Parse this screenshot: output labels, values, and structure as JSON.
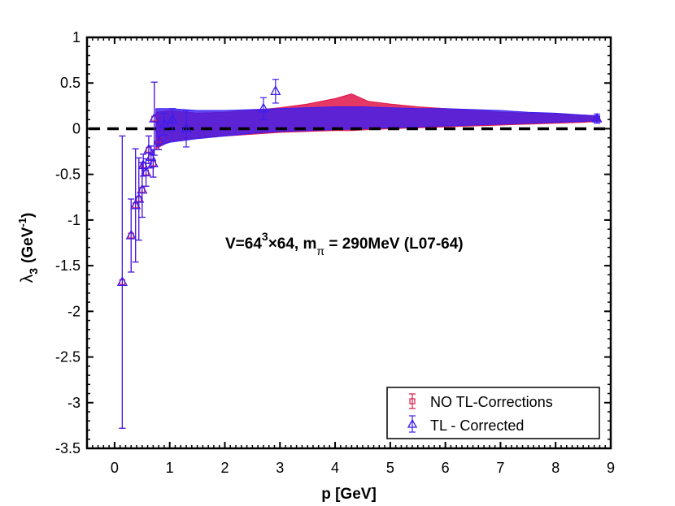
{
  "chart_data": {
    "type": "scatter",
    "title": "",
    "xlabel": "p [GeV]",
    "ylabel_main": "λ",
    "ylabel_sub": "3",
    "ylabel_unit": "(GeV",
    "ylabel_unit_sup": "-1",
    "ylabel_unit_end": ")",
    "xlim": [
      -0.5,
      9
    ],
    "ylim": [
      -3.5,
      1
    ],
    "xticks": [
      0,
      1,
      2,
      3,
      4,
      5,
      6,
      7,
      8,
      9
    ],
    "xtick_labels": [
      "0",
      "1",
      "2",
      "3",
      "4",
      "5",
      "6",
      "7",
      "8",
      "9"
    ],
    "yticks": [
      1,
      0.5,
      0,
      -0.5,
      -1,
      -1.5,
      -2,
      -2.5,
      -3,
      -3.5
    ],
    "ytick_labels": [
      "1",
      "0.5",
      "0",
      "-0.5",
      "-1",
      "-1.5",
      "-2",
      "-2.5",
      "-3",
      "-3.5"
    ],
    "reference_line_y": 0,
    "annotation": {
      "prefix": "V=64",
      "sup1": "3",
      "mid": "×64, m",
      "sub": "π",
      "suffix": " = 290MeV (L07-64)"
    },
    "legend": {
      "position": "bottom-right",
      "entries": [
        "NO TL-Corrections",
        "TL - Corrected"
      ]
    },
    "colors": {
      "no_tl": "#e0154a",
      "tl": "#3b1df0",
      "refline": "#000000"
    },
    "series": [
      {
        "name": "NO TL-Corrections",
        "marker": "square",
        "points": [
          {
            "x": 0.14,
            "y": -1.68,
            "err": 1.6
          },
          {
            "x": 0.3,
            "y": -1.17,
            "err": 0.4
          },
          {
            "x": 0.38,
            "y": -0.84,
            "err": 0.62
          },
          {
            "x": 0.44,
            "y": -0.77,
            "err": 0.45
          },
          {
            "x": 0.5,
            "y": -0.67,
            "err": 0.3
          },
          {
            "x": 0.52,
            "y": -0.4,
            "err": 0.12
          },
          {
            "x": 0.57,
            "y": -0.48,
            "err": 0.15
          },
          {
            "x": 0.62,
            "y": -0.23,
            "err": 0.15
          },
          {
            "x": 0.66,
            "y": -0.31,
            "err": 0.12
          },
          {
            "x": 0.7,
            "y": -0.38,
            "err": 0.15
          },
          {
            "x": 0.72,
            "y": 0.11,
            "err": 0.4
          },
          {
            "x": 0.8,
            "y": -0.13,
            "err": 0.1
          }
        ],
        "band": [
          {
            "x": 0.75,
            "lo": -0.22,
            "hi": 0.18
          },
          {
            "x": 1.0,
            "lo": -0.14,
            "hi": 0.2
          },
          {
            "x": 1.5,
            "lo": -0.1,
            "hi": 0.17
          },
          {
            "x": 2.0,
            "lo": -0.08,
            "hi": 0.18
          },
          {
            "x": 2.5,
            "lo": -0.06,
            "hi": 0.2
          },
          {
            "x": 3.0,
            "lo": -0.04,
            "hi": 0.23
          },
          {
            "x": 3.5,
            "lo": -0.03,
            "hi": 0.27
          },
          {
            "x": 4.0,
            "lo": -0.02,
            "hi": 0.33
          },
          {
            "x": 4.3,
            "lo": -0.02,
            "hi": 0.38
          },
          {
            "x": 4.6,
            "lo": -0.01,
            "hi": 0.3
          },
          {
            "x": 5.0,
            "lo": 0.0,
            "hi": 0.27
          },
          {
            "x": 5.5,
            "lo": 0.01,
            "hi": 0.24
          },
          {
            "x": 6.0,
            "lo": 0.02,
            "hi": 0.22
          },
          {
            "x": 6.5,
            "lo": 0.03,
            "hi": 0.2
          },
          {
            "x": 7.0,
            "lo": 0.04,
            "hi": 0.18
          },
          {
            "x": 7.5,
            "lo": 0.05,
            "hi": 0.17
          },
          {
            "x": 8.0,
            "lo": 0.06,
            "hi": 0.16
          },
          {
            "x": 8.5,
            "lo": 0.07,
            "hi": 0.15
          },
          {
            "x": 8.8,
            "lo": 0.08,
            "hi": 0.14
          }
        ]
      },
      {
        "name": "TL - Corrected",
        "marker": "triangle",
        "points": [
          {
            "x": 0.14,
            "y": -1.68,
            "err": 1.6
          },
          {
            "x": 0.3,
            "y": -1.17,
            "err": 0.4
          },
          {
            "x": 0.38,
            "y": -0.84,
            "err": 0.62
          },
          {
            "x": 0.44,
            "y": -0.77,
            "err": 0.45
          },
          {
            "x": 0.5,
            "y": -0.67,
            "err": 0.3
          },
          {
            "x": 0.52,
            "y": -0.4,
            "err": 0.12
          },
          {
            "x": 0.57,
            "y": -0.48,
            "err": 0.15
          },
          {
            "x": 0.62,
            "y": -0.23,
            "err": 0.15
          },
          {
            "x": 0.66,
            "y": -0.31,
            "err": 0.12
          },
          {
            "x": 0.7,
            "y": -0.38,
            "err": 0.15
          },
          {
            "x": 0.72,
            "y": 0.11,
            "err": 0.4
          },
          {
            "x": 0.8,
            "y": -0.13,
            "err": 0.1
          },
          {
            "x": 0.9,
            "y": 0.05,
            "err": 0.12
          },
          {
            "x": 1.05,
            "y": 0.1,
            "err": 0.12
          },
          {
            "x": 1.3,
            "y": 0.0,
            "err": 0.2
          },
          {
            "x": 2.7,
            "y": 0.22,
            "err": 0.12
          },
          {
            "x": 2.92,
            "y": 0.41,
            "err": 0.13
          },
          {
            "x": 8.75,
            "y": 0.11,
            "err": 0.05
          }
        ],
        "band": [
          {
            "x": 0.75,
            "lo": -0.2,
            "hi": 0.22
          },
          {
            "x": 1.0,
            "lo": -0.15,
            "hi": 0.22
          },
          {
            "x": 1.5,
            "lo": -0.11,
            "hi": 0.2
          },
          {
            "x": 2.0,
            "lo": -0.08,
            "hi": 0.2
          },
          {
            "x": 2.5,
            "lo": -0.05,
            "hi": 0.21
          },
          {
            "x": 3.0,
            "lo": -0.03,
            "hi": 0.22
          },
          {
            "x": 3.5,
            "lo": -0.02,
            "hi": 0.23
          },
          {
            "x": 4.0,
            "lo": -0.01,
            "hi": 0.24
          },
          {
            "x": 4.5,
            "lo": 0.0,
            "hi": 0.24
          },
          {
            "x": 5.0,
            "lo": 0.01,
            "hi": 0.23
          },
          {
            "x": 5.5,
            "lo": 0.02,
            "hi": 0.22
          },
          {
            "x": 6.0,
            "lo": 0.03,
            "hi": 0.22
          },
          {
            "x": 6.5,
            "lo": 0.04,
            "hi": 0.21
          },
          {
            "x": 7.0,
            "lo": 0.05,
            "hi": 0.2
          },
          {
            "x": 7.5,
            "lo": 0.06,
            "hi": 0.18
          },
          {
            "x": 8.0,
            "lo": 0.07,
            "hi": 0.17
          },
          {
            "x": 8.5,
            "lo": 0.08,
            "hi": 0.15
          },
          {
            "x": 8.8,
            "lo": 0.09,
            "hi": 0.14
          }
        ]
      }
    ]
  }
}
